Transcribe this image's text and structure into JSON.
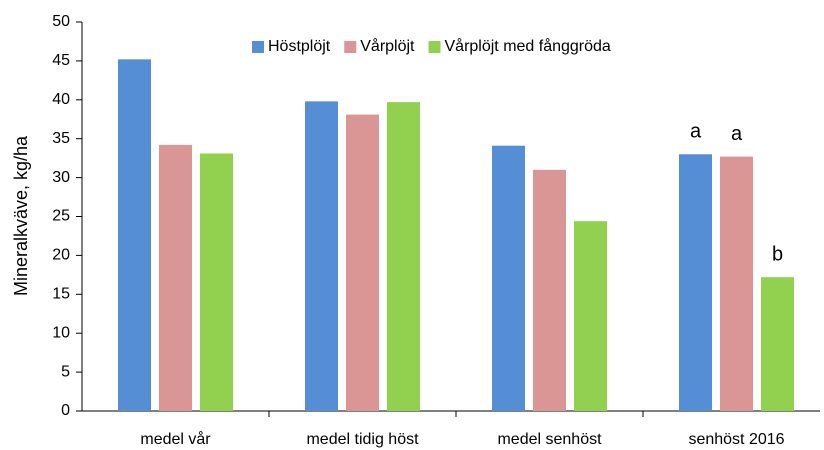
{
  "chart_data": {
    "type": "bar",
    "y_label": "Mineralkväve, kg/ha",
    "categories": [
      "medel vår",
      "medel tidig höst",
      "medel senhöst",
      "senhöst 2016"
    ],
    "series": [
      {
        "name": "Höstplöjt",
        "color": "#558ed5",
        "values": [
          45.2,
          39.8,
          34.1,
          33.0
        ],
        "annotations": [
          null,
          null,
          null,
          "a"
        ]
      },
      {
        "name": "Vårplöjt",
        "color": "#d99694",
        "values": [
          34.2,
          38.1,
          31.0,
          32.7
        ],
        "annotations": [
          null,
          null,
          null,
          "a"
        ]
      },
      {
        "name": "Vårplöjt med fånggröda",
        "color": "#92d050",
        "values": [
          33.1,
          39.7,
          24.4,
          17.2
        ],
        "annotations": [
          null,
          null,
          null,
          "b"
        ]
      }
    ],
    "ylim": [
      0,
      50
    ],
    "yticks": [
      0,
      5,
      10,
      15,
      20,
      25,
      30,
      35,
      40,
      45,
      50
    ],
    "legend": "top"
  }
}
